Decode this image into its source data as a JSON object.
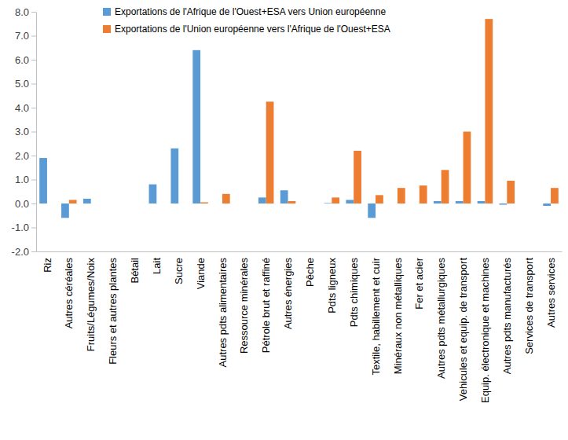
{
  "chart_data": {
    "type": "bar",
    "categories": [
      "Riz",
      "Autres céréales",
      "Fruits/Légumes/Noix",
      "Fleurs et autres plantes",
      "Bétail",
      "Lait",
      "Sucre",
      "Viande",
      "Autres pdts alimentaires",
      "Ressource minérales",
      "Pétrole brut et raffiné",
      "Autres énergies",
      "Pêche",
      "Pdts ligneux",
      "Pdts chimiques",
      "Textile, habillement et cuir",
      "Minéraux non métalliques",
      "Fer et acier",
      "Autres pdts métallurgiques",
      "Vehicules et equip. de transport",
      "Equip. électronique et machines",
      "Autres pdts manufacturés",
      "Services de transport",
      "Autres services"
    ],
    "series": [
      {
        "name": "Exportations de l'Afrique de l'Ouest+ESA vers Union européenne",
        "color": "#5b9bd5",
        "values": [
          1.9,
          -0.6,
          0.2,
          0,
          0,
          0.8,
          2.3,
          6.4,
          0,
          0,
          0.25,
          0.55,
          0,
          0.02,
          0.15,
          -0.6,
          0,
          0,
          0.1,
          0.1,
          0.1,
          -0.05,
          0,
          -0.1
        ]
      },
      {
        "name": "Exportations de l'Union européenne vers l'Afrique de l'Ouest+ESA",
        "color": "#ed7d31",
        "values": [
          0,
          0.15,
          0,
          0,
          0,
          0,
          0,
          0.05,
          0.4,
          0,
          4.25,
          0.1,
          0,
          0.25,
          2.2,
          0.35,
          0.65,
          0.75,
          1.4,
          3.0,
          7.7,
          0.95,
          0,
          0.65
        ]
      }
    ],
    "ylim": [
      -2,
      8
    ],
    "yticks": [
      {
        "value": -2,
        "label": "-2.0"
      },
      {
        "value": -1,
        "label": "-1.0"
      },
      {
        "value": 0,
        "label": "0.0"
      },
      {
        "value": 1,
        "label": "1.0"
      },
      {
        "value": 2,
        "label": "2.0"
      },
      {
        "value": 3,
        "label": "3.0"
      },
      {
        "value": 4,
        "label": "4.0"
      },
      {
        "value": 5,
        "label": "5.0"
      },
      {
        "value": 6,
        "label": "6.0"
      },
      {
        "value": 7,
        "label": "7.0"
      },
      {
        "value": 8,
        "label": "8.0"
      }
    ],
    "grid": false,
    "legend": "top-left"
  }
}
